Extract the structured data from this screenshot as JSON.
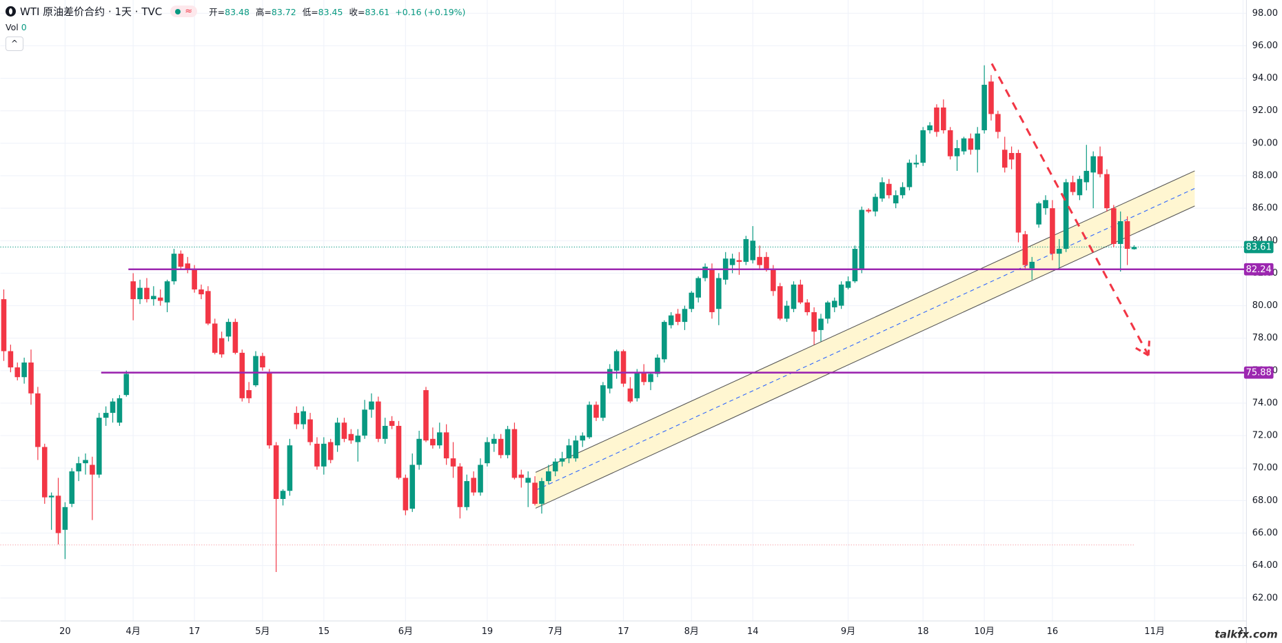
{
  "chart_data": {
    "type": "candlestick",
    "title": "WTI 原油差价合约 · 1天 · TVC",
    "badge": "≈",
    "ohlc_labels": [
      "开=",
      "高=",
      "低=",
      "收="
    ],
    "change": "+0.16 (+0.19%)",
    "volume_label": "Vol",
    "volume_value": 0,
    "watermark": "talkfx.com",
    "up_color": "#089981",
    "down_color": "#f23645",
    "ylim": [
      60.59,
      98.82
    ],
    "yticks": [
      {
        "value": 62,
        "label": "62.00"
      },
      {
        "value": 64,
        "label": "64.00"
      },
      {
        "value": 66,
        "label": "66.00"
      },
      {
        "value": 68,
        "label": "68.00"
      },
      {
        "value": 70,
        "label": "70.00"
      },
      {
        "value": 72,
        "label": "72.00"
      },
      {
        "value": 74,
        "label": "74.00"
      },
      {
        "value": 76,
        "label": "76.00"
      },
      {
        "value": 78,
        "label": "78.00"
      },
      {
        "value": 80,
        "label": "80.00"
      },
      {
        "value": 82,
        "label": "82.00"
      },
      {
        "value": 84,
        "label": "84.00"
      },
      {
        "value": 86,
        "label": "86.00"
      },
      {
        "value": 88,
        "label": "88.00"
      },
      {
        "value": 90,
        "label": "90.00"
      },
      {
        "value": 92,
        "label": "92.00"
      },
      {
        "value": 94,
        "label": "94.00"
      },
      {
        "value": 96,
        "label": "96.00"
      },
      {
        "value": 98,
        "label": "98.00"
      }
    ],
    "grid": true,
    "categories": [
      null,
      null,
      null,
      null,
      null,
      null,
      null,
      null,
      null,
      "20",
      null,
      null,
      null,
      null,
      null,
      null,
      null,
      null,
      null,
      "4月",
      null,
      null,
      null,
      null,
      null,
      null,
      null,
      null,
      "17",
      null,
      null,
      null,
      null,
      null,
      null,
      null,
      null,
      null,
      "5月",
      null,
      null,
      null,
      null,
      null,
      null,
      null,
      null,
      "15",
      null,
      null,
      null,
      null,
      null,
      null,
      null,
      null,
      null,
      null,
      null,
      "6月",
      null,
      null,
      null,
      null,
      null,
      null,
      null,
      null,
      null,
      null,
      null,
      "19",
      null,
      null,
      null,
      null,
      null,
      null,
      null,
      null,
      null,
      "7月",
      null,
      null,
      null,
      null,
      null,
      null,
      null,
      null,
      null,
      "17",
      null,
      null,
      null,
      null,
      null,
      null,
      null,
      null,
      null,
      "8月",
      null,
      null,
      null,
      null,
      null,
      null,
      null,
      null,
      "14",
      null,
      null,
      null,
      null,
      null,
      null,
      null,
      null,
      null,
      null,
      null,
      null,
      null,
      "9月",
      null,
      null,
      null,
      null,
      null,
      null,
      null,
      null,
      null,
      null,
      "18",
      null,
      null,
      null,
      null,
      null,
      null,
      null,
      null,
      "10月",
      null,
      null,
      null,
      null,
      null,
      null,
      null,
      null,
      null,
      "16",
      null,
      null,
      null,
      null,
      null,
      null,
      null,
      null,
      null,
      null,
      null,
      null,
      null,
      null,
      "11月",
      null,
      null,
      null,
      null,
      null,
      null,
      null,
      null,
      null,
      null,
      null,
      null,
      "21"
    ],
    "ohlc": [
      [
        80.4,
        81,
        76.6,
        77.2
      ],
      [
        77.2,
        77.6,
        75.9,
        76.2
      ],
      [
        76.2,
        76.5,
        75.4,
        75.6
      ],
      [
        75.6,
        76.8,
        75.2,
        76.5
      ],
      [
        76.5,
        77.3,
        73.9,
        74.6
      ],
      [
        74.6,
        75,
        70.5,
        71.3
      ],
      [
        71.3,
        71.5,
        67.8,
        68.2
      ],
      [
        68.2,
        68.5,
        66.2,
        68.3
      ],
      [
        68.3,
        69.4,
        65.3,
        66
      ],
      [
        66.2,
        67.9,
        64.4,
        67.6
      ],
      [
        67.8,
        70,
        67.6,
        69.8
      ],
      [
        69.8,
        70.7,
        69.2,
        70.3
      ],
      [
        70.3,
        70.9,
        69.6,
        70.5
      ],
      [
        70.2,
        70.7,
        66.8,
        69.6
      ],
      [
        69.6,
        73.4,
        69.4,
        73.1
      ],
      [
        73.1,
        73.8,
        72.6,
        73.4
      ],
      [
        73.4,
        74.3,
        72.8,
        74.1
      ],
      [
        72.8,
        74.5,
        72.6,
        74.3
      ],
      [
        74.5,
        76,
        74.4,
        75.8
      ],
      [
        81.5,
        82,
        79.1,
        80.4
      ],
      [
        80.4,
        81.6,
        80.1,
        81.1
      ],
      [
        81.1,
        81.7,
        80.2,
        80.4
      ],
      [
        80.4,
        81.2,
        80,
        80.6
      ],
      [
        80.5,
        81,
        80,
        80.3
      ],
      [
        80.2,
        81.6,
        79.6,
        81.5
      ],
      [
        81.5,
        83.5,
        81.3,
        83.2
      ],
      [
        83.2,
        83.4,
        82.2,
        82.4
      ],
      [
        82.6,
        83,
        82,
        82.2
      ],
      [
        82.2,
        82.5,
        80.8,
        81
      ],
      [
        81,
        81.3,
        80.4,
        80.7
      ],
      [
        80.9,
        81.2,
        78.8,
        78.9
      ],
      [
        78.9,
        79.2,
        77,
        77.1
      ],
      [
        78,
        78.4,
        76.8,
        77
      ],
      [
        78.1,
        79.2,
        77.8,
        79
      ],
      [
        79,
        79.2,
        77,
        77.1
      ],
      [
        77.1,
        77.3,
        74.1,
        74.3
      ],
      [
        74.8,
        75.3,
        74,
        74.3
      ],
      [
        75.1,
        77.2,
        75,
        76.9
      ],
      [
        76.9,
        77.1,
        76,
        76.2
      ],
      [
        75.9,
        76.1,
        71.2,
        71.4
      ],
      [
        71.4,
        71.6,
        63.6,
        68.1
      ],
      [
        68.1,
        68.7,
        67.7,
        68.6
      ],
      [
        68.6,
        71.8,
        68.3,
        71.4
      ],
      [
        73.4,
        73.8,
        72.4,
        72.7
      ],
      [
        72.7,
        73.8,
        72.4,
        73.5
      ],
      [
        73,
        73.4,
        71.4,
        71.6
      ],
      [
        71.5,
        71.9,
        69.9,
        70.1
      ],
      [
        70.1,
        71.9,
        69.6,
        71.5
      ],
      [
        71.6,
        71.8,
        70.3,
        70.5
      ],
      [
        71.4,
        73.1,
        71,
        72.8
      ],
      [
        72.8,
        73.1,
        71.6,
        71.8
      ],
      [
        72.1,
        72.4,
        71.5,
        71.7
      ],
      [
        71.6,
        72.4,
        70.4,
        72
      ],
      [
        72,
        74.2,
        71.8,
        73.6
      ],
      [
        73.6,
        74.6,
        73.1,
        74.1
      ],
      [
        74.1,
        74.4,
        71.6,
        71.8
      ],
      [
        71.8,
        73.1,
        71.5,
        72.6
      ],
      [
        72.9,
        73.2,
        72.4,
        72.6
      ],
      [
        72.6,
        72.9,
        69.3,
        69.4
      ],
      [
        69.4,
        69.6,
        67.1,
        67.4
      ],
      [
        67.5,
        70.9,
        67.3,
        70.2
      ],
      [
        70.2,
        72.3,
        69.9,
        71.8
      ],
      [
        74.8,
        75,
        71.6,
        71.7
      ],
      [
        71.8,
        72.5,
        71.2,
        71.4
      ],
      [
        71.4,
        72.8,
        71.2,
        72.2
      ],
      [
        72.2,
        72.7,
        70.2,
        70.6
      ],
      [
        70.6,
        71.6,
        69.4,
        70.1
      ],
      [
        70.1,
        70.3,
        66.9,
        67.6
      ],
      [
        67.6,
        69.6,
        67.4,
        69.2
      ],
      [
        69.4,
        69.8,
        68.3,
        68.5
      ],
      [
        68.5,
        70.6,
        68.3,
        70.2
      ],
      [
        70.3,
        71.9,
        70.1,
        71.6
      ],
      [
        71.5,
        72.1,
        71,
        71.8
      ],
      [
        71.8,
        72.1,
        70.6,
        70.8
      ],
      [
        70.8,
        72.6,
        70.6,
        72.4
      ],
      [
        72.4,
        72.8,
        69.3,
        69.4
      ],
      [
        69.6,
        69.9,
        68.8,
        69.4
      ],
      [
        69.1,
        69.8,
        67.6,
        69.4
      ],
      [
        69.1,
        69.5,
        67.7,
        67.8
      ],
      [
        67.8,
        69.4,
        67.2,
        69.2
      ],
      [
        69.2,
        70.2,
        69,
        69.8
      ],
      [
        69.8,
        70.6,
        69.5,
        70.4
      ],
      [
        70.4,
        71,
        70.1,
        70.6
      ],
      [
        70.6,
        71.8,
        70.3,
        71.4
      ],
      [
        70.6,
        72,
        70.4,
        71.7
      ],
      [
        71.7,
        72.2,
        71.3,
        72
      ],
      [
        71.9,
        74.1,
        71.8,
        73.9
      ],
      [
        73.9,
        74.1,
        72.9,
        73.1
      ],
      [
        73.1,
        75.3,
        72.9,
        75.1
      ],
      [
        74.9,
        76.4,
        74.6,
        76.1
      ],
      [
        76,
        77.3,
        75.5,
        77.2
      ],
      [
        77.2,
        77.3,
        75,
        75.2
      ],
      [
        74.9,
        75.6,
        74,
        74.1
      ],
      [
        74.3,
        76.1,
        74.1,
        75.9
      ],
      [
        75.9,
        76.4,
        75.1,
        75.3
      ],
      [
        75.3,
        75.9,
        74.8,
        75.8
      ],
      [
        75.8,
        77,
        75.6,
        76.8
      ],
      [
        76.7,
        79.1,
        76.5,
        79
      ],
      [
        78.8,
        79.6,
        78.6,
        79.4
      ],
      [
        79.5,
        79.8,
        78.8,
        79
      ],
      [
        79,
        80,
        78.5,
        79.8
      ],
      [
        79.8,
        80.9,
        79.6,
        80.8
      ],
      [
        80.5,
        81.8,
        80.2,
        81.7
      ],
      [
        81.7,
        82.6,
        81.5,
        82.4
      ],
      [
        82.2,
        82.6,
        79.2,
        79.6
      ],
      [
        79.8,
        82,
        78.8,
        81.7
      ],
      [
        81.6,
        83.3,
        81.3,
        82.9
      ],
      [
        82.5,
        83.2,
        82,
        82.9
      ],
      [
        82.8,
        83.3,
        81.9,
        82.7
      ],
      [
        82.7,
        84.3,
        82.5,
        84.1
      ],
      [
        82.8,
        84.9,
        82.6,
        84
      ],
      [
        83,
        83.7,
        82.2,
        82.5
      ],
      [
        83,
        83.3,
        82.1,
        82.2
      ],
      [
        82.2,
        82.5,
        80.6,
        80.9
      ],
      [
        81.2,
        81.4,
        79.1,
        79.2
      ],
      [
        79.2,
        80.3,
        79,
        80
      ],
      [
        79.8,
        81.5,
        79.6,
        81.3
      ],
      [
        81.3,
        81.6,
        80.1,
        80.2
      ],
      [
        80.2,
        80.4,
        79.4,
        79.6
      ],
      [
        79.6,
        79.9,
        77.6,
        78.4
      ],
      [
        78.5,
        79.5,
        77.8,
        79.2
      ],
      [
        79.2,
        80.3,
        78.9,
        80.2
      ],
      [
        79.9,
        80.5,
        79.6,
        80.3
      ],
      [
        80,
        81.5,
        79.8,
        81.3
      ],
      [
        81.1,
        81.8,
        81,
        81.5
      ],
      [
        81.5,
        83.7,
        81.4,
        83.5
      ],
      [
        82.2,
        86.1,
        82,
        85.9
      ],
      [
        85.9,
        86,
        85.7,
        85.8
      ],
      [
        85.8,
        86.9,
        85.5,
        86.7
      ],
      [
        86.6,
        87.9,
        86.4,
        87.6
      ],
      [
        87.5,
        87.8,
        86.6,
        86.8
      ],
      [
        86.3,
        87.1,
        86,
        86.8
      ],
      [
        86.8,
        87.6,
        86.6,
        87.3
      ],
      [
        87.3,
        89,
        87.1,
        88.8
      ],
      [
        88.7,
        89.3,
        88.5,
        88.8
      ],
      [
        88.8,
        91,
        88.6,
        90.8
      ],
      [
        90.8,
        91.3,
        90.6,
        91.1
      ],
      [
        92.2,
        92.4,
        90.4,
        90.7
      ],
      [
        92.2,
        92.7,
        90.6,
        90.8
      ],
      [
        90.8,
        91,
        89,
        89.2
      ],
      [
        89.2,
        90.2,
        88.3,
        89.7
      ],
      [
        89.5,
        90.4,
        89.3,
        90.3
      ],
      [
        90.3,
        90.6,
        89.3,
        89.6
      ],
      [
        89.6,
        91,
        88.2,
        90.6
      ],
      [
        90.8,
        94.8,
        90.6,
        93.6
      ],
      [
        93.8,
        94.2,
        91.4,
        91.8
      ],
      [
        91.8,
        92,
        90.3,
        90.7
      ],
      [
        89.6,
        90.4,
        88.2,
        88.5
      ],
      [
        89.4,
        89.8,
        88.4,
        89
      ],
      [
        89.4,
        89.6,
        83.9,
        84.5
      ],
      [
        84.4,
        84.6,
        82.3,
        82.5
      ],
      [
        82.3,
        83,
        81.6,
        82.7
      ],
      [
        85,
        86.4,
        84.8,
        86.3
      ],
      [
        86,
        86.8,
        85.6,
        86.5
      ],
      [
        86,
        86.5,
        82.8,
        83.2
      ],
      [
        83.2,
        84.1,
        82.3,
        83.5
      ],
      [
        83.5,
        87.8,
        83.3,
        87.6
      ],
      [
        87.6,
        88,
        86.8,
        87
      ],
      [
        86.8,
        88,
        86.5,
        87.8
      ],
      [
        87.6,
        89.9,
        87.1,
        88.3
      ],
      [
        88.2,
        89.5,
        86,
        89.2
      ],
      [
        89.2,
        89.8,
        87.9,
        88.1
      ],
      [
        88.1,
        88.4,
        85.8,
        86
      ],
      [
        86,
        86.2,
        83.6,
        83.8
      ],
      [
        83.8,
        85.8,
        82.1,
        85.2
      ],
      [
        85.2,
        85.5,
        82.5,
        83.5
      ],
      [
        83.48,
        83.72,
        83.45,
        83.61
      ],
      null,
      null,
      null,
      null,
      null,
      null,
      null,
      null,
      null,
      null,
      null,
      null,
      null,
      null,
      null,
      null
    ],
    "levels": [
      {
        "value": 82.24,
        "start": 18.3,
        "color": "#9c27b0"
      },
      {
        "value": 75.88,
        "start": 14.3,
        "color": "#9c27b0"
      }
    ],
    "dotted_level": {
      "value": 65.27,
      "color": "#f7a1a8"
    },
    "channel": {
      "upper": [
        [
          78.1,
          69.74
        ],
        [
          174.9,
          88.3
        ]
      ],
      "lower": [
        [
          78.1,
          67.53
        ],
        [
          174.9,
          86.14
        ]
      ],
      "fill": "#fff5cc",
      "line_color": "#555555",
      "mid_color": "#2962ff"
    },
    "projection": {
      "points": [
        [
          145.1,
          94.9
        ],
        [
          168.1,
          76.94
        ]
      ],
      "color": "#f23645"
    }
  }
}
